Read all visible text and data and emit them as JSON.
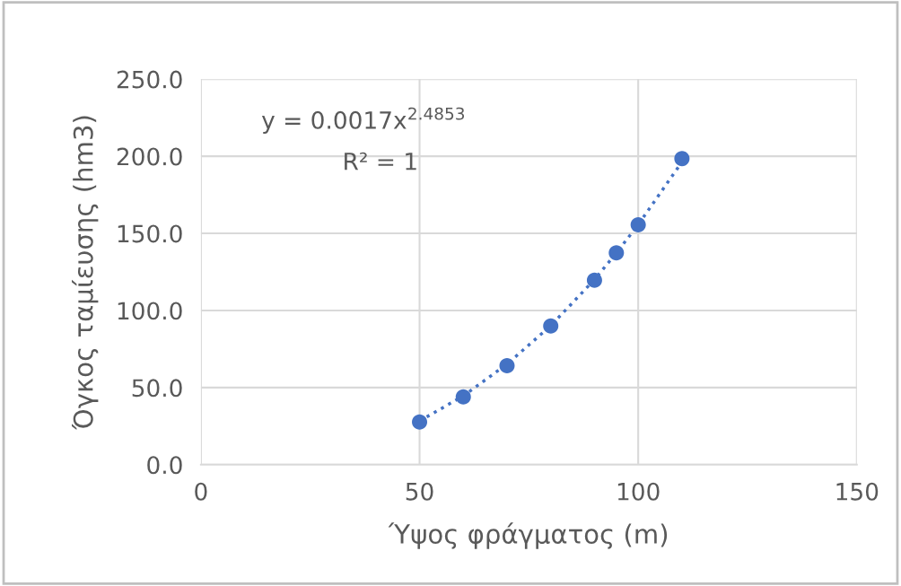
{
  "chart_data": {
    "type": "scatter",
    "xlabel": "Ύψος φράγματος (m)",
    "ylabel": "Όγκος ταμίευσης (hm3)",
    "xlim": [
      0,
      150
    ],
    "xticks": [
      0,
      50,
      100,
      150
    ],
    "ylim": [
      0,
      250
    ],
    "yticks": [
      {
        "value": 0,
        "label": "0.0"
      },
      {
        "value": 50,
        "label": "50.0"
      },
      {
        "value": 100,
        "label": "100.0"
      },
      {
        "value": 150,
        "label": "150.0"
      },
      {
        "value": 200,
        "label": "200.0"
      },
      {
        "value": 250,
        "label": "250.0"
      }
    ],
    "grid": true,
    "marker": "circle",
    "series": [
      {
        "color": "#4472c4",
        "x": [
          50,
          60,
          70,
          80,
          90,
          95,
          100,
          110
        ],
        "values": [
          27.7,
          44.0,
          64.2,
          89.9,
          119.6,
          137.3,
          155.6,
          198.4
        ]
      },
      {
        "type": "line",
        "color": "#4472c4",
        "line_style": "dotted",
        "marker": "none",
        "x": [
          50,
          60,
          70,
          80,
          90,
          95,
          100,
          110
        ],
        "values": [
          28.3,
          44.6,
          65.2,
          90.1,
          120.0,
          137.3,
          155.6,
          196.3
        ]
      }
    ],
    "annotations": [
      "y = 0.0017x$^{2.4853}$",
      "R² = 1"
    ]
  }
}
